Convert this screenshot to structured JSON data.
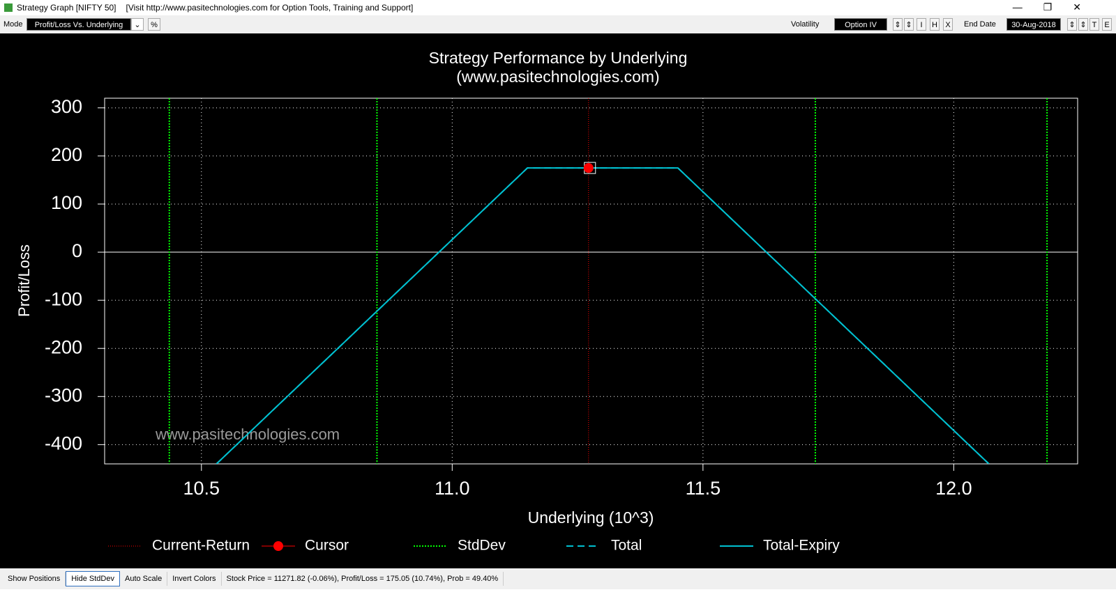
{
  "window": {
    "title": "Strategy Graph [NIFTY 50]",
    "visit": "[Visit  http://www.pasitechnologies.com  for Option Tools, Training and Support]"
  },
  "toolbar": {
    "mode_label": "Mode",
    "mode": "Profit/Loss Vs. Underlying",
    "percent": "%",
    "volatility_label": "Volatility",
    "volatility": "Option IV",
    "vol_buttons": [
      "I",
      "H",
      "X"
    ],
    "end_date_label": "End Date",
    "end_date": "30-Aug-2018",
    "date_buttons": [
      "T",
      "E"
    ]
  },
  "chart_data": {
    "type": "line",
    "title": "Strategy Performance by Underlying",
    "subtitle": "(www.pasitechnologies.com)",
    "xlabel": "Underlying (10^3)",
    "ylabel": "Profit/Loss",
    "watermark": "www.pasitechnologies.com",
    "xlim": [
      10.307,
      12.247
    ],
    "ylim": [
      -440,
      320
    ],
    "xticks": [
      10.5,
      {
        "value": 11,
        "label": "11.0"
      },
      11.5,
      {
        "value": 12,
        "label": "12.0"
      }
    ],
    "yticks": [
      -400,
      -300,
      -200,
      -100,
      0,
      100,
      200,
      300
    ],
    "grid": true,
    "current_return": {
      "name": "Current-Return",
      "color": "#ff0000",
      "x": 11.27182
    },
    "cursor": {
      "name": "Cursor",
      "color": "#ff0000",
      "x": 11.27182,
      "y": 175.05
    },
    "stddev": {
      "name": "StdDev",
      "color": "#00ff00",
      "x": [
        10.436,
        10.85,
        11.724,
        12.186
      ]
    },
    "series": [
      {
        "name": "Total",
        "color": "#00c0d0",
        "style": "dashed",
        "x": [
          10.53,
          11.15,
          11.45,
          12.07
        ],
        "values": [
          -440,
          175,
          175,
          -440
        ]
      },
      {
        "name": "Total-Expiry",
        "color": "#00c0d0",
        "style": "solid",
        "x": [
          10.53,
          11.15,
          11.45,
          12.07
        ],
        "values": [
          -440,
          175,
          175,
          -440
        ]
      }
    ]
  },
  "status": {
    "buttons": [
      "Show Positions",
      "Hide StdDev",
      "Auto Scale",
      "Invert Colors"
    ],
    "info": "Stock Price = 11271.82 (-0.06%), Profit/Loss = 175.05 (10.74%), Prob = 49.40%"
  }
}
